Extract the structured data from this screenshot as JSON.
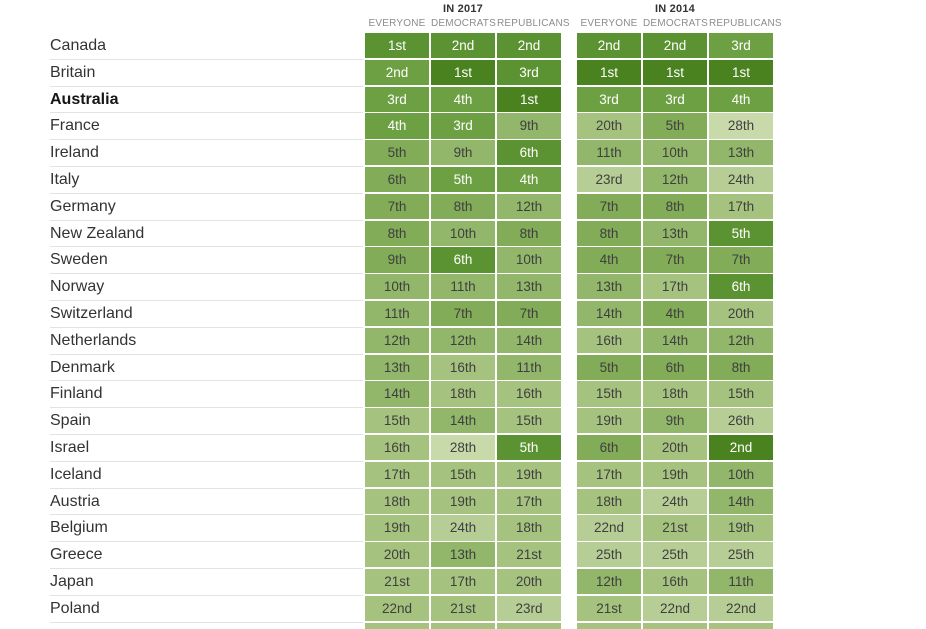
{
  "header": {
    "groups": [
      {
        "label": "IN 2017",
        "columns": [
          "EVERYONE",
          "DEMOCRATS",
          "REPUBLICANS"
        ]
      },
      {
        "label": "IN 2014",
        "columns": [
          "EVERYONE",
          "DEMOCRATS",
          "REPUBLICANS"
        ]
      }
    ]
  },
  "palette": [
    "#4a8220",
    "#5b9232",
    "#6d9f43",
    "#82ac57",
    "#92b76a",
    "#a6c27f",
    "#b6cd95",
    "#c8daaa"
  ],
  "text_colors": {
    "light": "#ffffff",
    "dark": "#3f3f3f"
  },
  "chart_data": {
    "type": "heatmap",
    "title": "",
    "column_groups": [
      "IN 2017",
      "IN 2014"
    ],
    "columns": [
      "2017 Everyone",
      "2017 Democrats",
      "2017 Republicans",
      "2014 Everyone",
      "2014 Democrats",
      "2014 Republicans"
    ],
    "legend_position": "none",
    "grid": false,
    "rows": [
      {
        "country": "Canada",
        "bold": false,
        "cells": [
          {
            "t": "1st",
            "l": 1
          },
          {
            "t": "2nd",
            "l": 1
          },
          {
            "t": "2nd",
            "l": 1
          },
          {
            "t": "2nd",
            "l": 1
          },
          {
            "t": "2nd",
            "l": 1
          },
          {
            "t": "3rd",
            "l": 2
          }
        ]
      },
      {
        "country": "Britain",
        "bold": false,
        "cells": [
          {
            "t": "2nd",
            "l": 2
          },
          {
            "t": "1st",
            "l": 0
          },
          {
            "t": "3rd",
            "l": 1
          },
          {
            "t": "1st",
            "l": 0
          },
          {
            "t": "1st",
            "l": 0
          },
          {
            "t": "1st",
            "l": 0
          }
        ]
      },
      {
        "country": "Australia",
        "bold": true,
        "cells": [
          {
            "t": "3rd",
            "l": 2
          },
          {
            "t": "4th",
            "l": 2
          },
          {
            "t": "1st",
            "l": 0
          },
          {
            "t": "3rd",
            "l": 2
          },
          {
            "t": "3rd",
            "l": 2
          },
          {
            "t": "4th",
            "l": 2
          }
        ]
      },
      {
        "country": "France",
        "bold": false,
        "cells": [
          {
            "t": "4th",
            "l": 2
          },
          {
            "t": "3rd",
            "l": 2
          },
          {
            "t": "9th",
            "l": 4
          },
          {
            "t": "20th",
            "l": 5
          },
          {
            "t": "5th",
            "l": 3
          },
          {
            "t": "28th",
            "l": 7
          }
        ]
      },
      {
        "country": "Ireland",
        "bold": false,
        "cells": [
          {
            "t": "5th",
            "l": 3
          },
          {
            "t": "9th",
            "l": 4
          },
          {
            "t": "6th",
            "l": 1
          },
          {
            "t": "11th",
            "l": 4
          },
          {
            "t": "10th",
            "l": 4
          },
          {
            "t": "13th",
            "l": 4
          }
        ]
      },
      {
        "country": "Italy",
        "bold": false,
        "cells": [
          {
            "t": "6th",
            "l": 3
          },
          {
            "t": "5th",
            "l": 2
          },
          {
            "t": "4th",
            "l": 2
          },
          {
            "t": "23rd",
            "l": 6
          },
          {
            "t": "12th",
            "l": 4
          },
          {
            "t": "24th",
            "l": 6
          }
        ]
      },
      {
        "country": "Germany",
        "bold": false,
        "cells": [
          {
            "t": "7th",
            "l": 3
          },
          {
            "t": "8th",
            "l": 3
          },
          {
            "t": "12th",
            "l": 4
          },
          {
            "t": "7th",
            "l": 3
          },
          {
            "t": "8th",
            "l": 3
          },
          {
            "t": "17th",
            "l": 5
          }
        ]
      },
      {
        "country": "New Zealand",
        "bold": false,
        "cells": [
          {
            "t": "8th",
            "l": 3
          },
          {
            "t": "10th",
            "l": 4
          },
          {
            "t": "8th",
            "l": 3
          },
          {
            "t": "8th",
            "l": 3
          },
          {
            "t": "13th",
            "l": 4
          },
          {
            "t": "5th",
            "l": 1
          }
        ]
      },
      {
        "country": "Sweden",
        "bold": false,
        "cells": [
          {
            "t": "9th",
            "l": 3
          },
          {
            "t": "6th",
            "l": 1
          },
          {
            "t": "10th",
            "l": 4
          },
          {
            "t": "4th",
            "l": 3
          },
          {
            "t": "7th",
            "l": 3
          },
          {
            "t": "7th",
            "l": 3
          }
        ]
      },
      {
        "country": "Norway",
        "bold": false,
        "cells": [
          {
            "t": "10th",
            "l": 4
          },
          {
            "t": "11th",
            "l": 4
          },
          {
            "t": "13th",
            "l": 4
          },
          {
            "t": "13th",
            "l": 4
          },
          {
            "t": "17th",
            "l": 5
          },
          {
            "t": "6th",
            "l": 1
          }
        ]
      },
      {
        "country": "Switzerland",
        "bold": false,
        "cells": [
          {
            "t": "11th",
            "l": 4
          },
          {
            "t": "7th",
            "l": 3
          },
          {
            "t": "7th",
            "l": 3
          },
          {
            "t": "14th",
            "l": 4
          },
          {
            "t": "4th",
            "l": 3
          },
          {
            "t": "20th",
            "l": 5
          }
        ]
      },
      {
        "country": "Netherlands",
        "bold": false,
        "cells": [
          {
            "t": "12th",
            "l": 4
          },
          {
            "t": "12th",
            "l": 4
          },
          {
            "t": "14th",
            "l": 4
          },
          {
            "t": "16th",
            "l": 5
          },
          {
            "t": "14th",
            "l": 4
          },
          {
            "t": "12th",
            "l": 4
          }
        ]
      },
      {
        "country": "Denmark",
        "bold": false,
        "cells": [
          {
            "t": "13th",
            "l": 4
          },
          {
            "t": "16th",
            "l": 5
          },
          {
            "t": "11th",
            "l": 4
          },
          {
            "t": "5th",
            "l": 3
          },
          {
            "t": "6th",
            "l": 3
          },
          {
            "t": "8th",
            "l": 3
          }
        ]
      },
      {
        "country": "Finland",
        "bold": false,
        "cells": [
          {
            "t": "14th",
            "l": 4
          },
          {
            "t": "18th",
            "l": 5
          },
          {
            "t": "16th",
            "l": 5
          },
          {
            "t": "15th",
            "l": 5
          },
          {
            "t": "18th",
            "l": 5
          },
          {
            "t": "15th",
            "l": 5
          }
        ]
      },
      {
        "country": "Spain",
        "bold": false,
        "cells": [
          {
            "t": "15th",
            "l": 5
          },
          {
            "t": "14th",
            "l": 4
          },
          {
            "t": "15th",
            "l": 5
          },
          {
            "t": "19th",
            "l": 5
          },
          {
            "t": "9th",
            "l": 4
          },
          {
            "t": "26th",
            "l": 6
          }
        ]
      },
      {
        "country": "Israel",
        "bold": false,
        "cells": [
          {
            "t": "16th",
            "l": 5
          },
          {
            "t": "28th",
            "l": 7
          },
          {
            "t": "5th",
            "l": 1
          },
          {
            "t": "6th",
            "l": 3
          },
          {
            "t": "20th",
            "l": 5
          },
          {
            "t": "2nd",
            "l": 0
          }
        ]
      },
      {
        "country": "Iceland",
        "bold": false,
        "cells": [
          {
            "t": "17th",
            "l": 5
          },
          {
            "t": "15th",
            "l": 5
          },
          {
            "t": "19th",
            "l": 5
          },
          {
            "t": "17th",
            "l": 5
          },
          {
            "t": "19th",
            "l": 5
          },
          {
            "t": "10th",
            "l": 4
          }
        ]
      },
      {
        "country": "Austria",
        "bold": false,
        "cells": [
          {
            "t": "18th",
            "l": 5
          },
          {
            "t": "19th",
            "l": 5
          },
          {
            "t": "17th",
            "l": 5
          },
          {
            "t": "18th",
            "l": 5
          },
          {
            "t": "24th",
            "l": 6
          },
          {
            "t": "14th",
            "l": 4
          }
        ]
      },
      {
        "country": "Belgium",
        "bold": false,
        "cells": [
          {
            "t": "19th",
            "l": 5
          },
          {
            "t": "24th",
            "l": 6
          },
          {
            "t": "18th",
            "l": 5
          },
          {
            "t": "22nd",
            "l": 6
          },
          {
            "t": "21st",
            "l": 5
          },
          {
            "t": "19th",
            "l": 5
          }
        ]
      },
      {
        "country": "Greece",
        "bold": false,
        "cells": [
          {
            "t": "20th",
            "l": 5
          },
          {
            "t": "13th",
            "l": 4
          },
          {
            "t": "21st",
            "l": 5
          },
          {
            "t": "25th",
            "l": 6
          },
          {
            "t": "25th",
            "l": 6
          },
          {
            "t": "25th",
            "l": 6
          }
        ]
      },
      {
        "country": "Japan",
        "bold": false,
        "cells": [
          {
            "t": "21st",
            "l": 5
          },
          {
            "t": "17th",
            "l": 5
          },
          {
            "t": "20th",
            "l": 5
          },
          {
            "t": "12th",
            "l": 4
          },
          {
            "t": "16th",
            "l": 5
          },
          {
            "t": "11th",
            "l": 4
          }
        ]
      },
      {
        "country": "Poland",
        "bold": false,
        "cells": [
          {
            "t": "22nd",
            "l": 5
          },
          {
            "t": "21st",
            "l": 5
          },
          {
            "t": "23rd",
            "l": 6
          },
          {
            "t": "21st",
            "l": 5
          },
          {
            "t": "22nd",
            "l": 6
          },
          {
            "t": "22nd",
            "l": 6
          }
        ]
      }
    ],
    "partial_row": {
      "country": "",
      "cells": [
        {
          "t": "",
          "l": 5
        },
        {
          "t": "",
          "l": 5
        },
        {
          "t": "",
          "l": 5
        },
        {
          "t": "",
          "l": 5
        },
        {
          "t": "",
          "l": 5
        },
        {
          "t": "",
          "l": 5
        }
      ]
    }
  }
}
